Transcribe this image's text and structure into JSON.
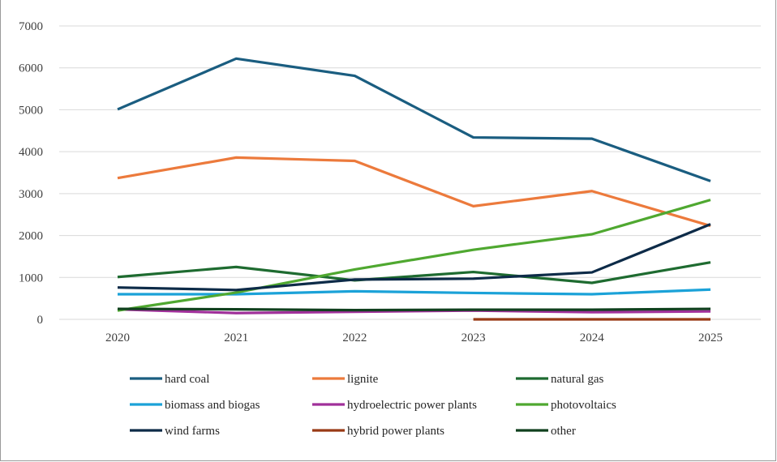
{
  "chart_data": {
    "type": "line",
    "title": "",
    "xlabel": "",
    "ylabel": "",
    "x": [
      "2020",
      "2021",
      "2022",
      "2023",
      "2024",
      "2025"
    ],
    "ylim": [
      0,
      7000
    ],
    "yticks": [
      "0",
      "1000",
      "2000",
      "3000",
      "4000",
      "5000",
      "6000",
      "7000"
    ],
    "grid": "horizontal",
    "legend_position": "bottom",
    "series": [
      {
        "name": "hard coal",
        "color": "#1a5d80",
        "values": [
          5010,
          6220,
          5810,
          4340,
          4310,
          3300
        ]
      },
      {
        "name": "lignite",
        "color": "#ec7a3c",
        "values": [
          3370,
          3860,
          3780,
          2700,
          3060,
          2230
        ]
      },
      {
        "name": "natural gas",
        "color": "#1e6b30",
        "values": [
          1010,
          1250,
          930,
          1130,
          870,
          1360
        ]
      },
      {
        "name": "biomass and biogas",
        "color": "#1ba2d8",
        "values": [
          600,
          600,
          670,
          630,
          600,
          710
        ]
      },
      {
        "name": "hydroelectric power plants",
        "color": "#a0309a",
        "values": [
          240,
          150,
          180,
          210,
          170,
          190
        ]
      },
      {
        "name": "photovoltaics",
        "color": "#4fa830",
        "values": [
          210,
          640,
          1190,
          1660,
          2030,
          2850
        ]
      },
      {
        "name": "wind farms",
        "color": "#0d2b48",
        "values": [
          760,
          700,
          950,
          970,
          1120,
          2270
        ]
      },
      {
        "name": "hybrid power plants",
        "color": "#993a16",
        "values": [
          null,
          null,
          null,
          0,
          0,
          0
        ]
      },
      {
        "name": "other",
        "color": "#10401e",
        "values": [
          250,
          240,
          220,
          230,
          230,
          250
        ]
      }
    ]
  }
}
